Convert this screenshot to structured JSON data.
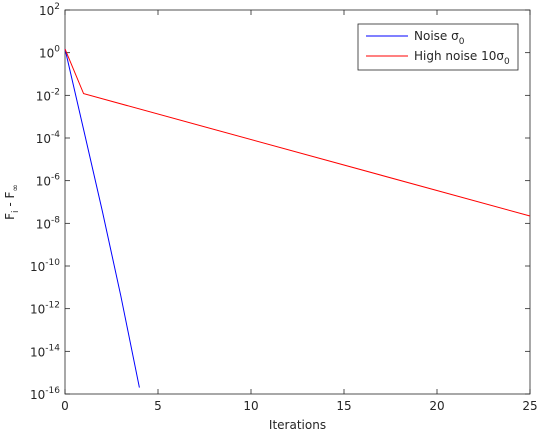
{
  "chart_data": {
    "type": "line",
    "xlabel": "Iterations",
    "ylabel": "F_{i} - F_{∞}",
    "log_y": true,
    "grid": false,
    "legend": "top-right",
    "xlim": [
      0,
      25
    ],
    "xticks": [
      0,
      5,
      10,
      15,
      20,
      25
    ],
    "ylim": [
      1e-16,
      100
    ],
    "yticks": [
      {
        "value": 100,
        "label": "10^{2}"
      },
      {
        "value": 1,
        "label": "10^{0}"
      },
      {
        "value": 0.01,
        "label": "10^{-2}"
      },
      {
        "value": 0.0001,
        "label": "10^{-4}"
      },
      {
        "value": 1e-06,
        "label": "10^{-6}"
      },
      {
        "value": 1e-08,
        "label": "10^{-8}"
      },
      {
        "value": 1e-10,
        "label": "10^{-10}"
      },
      {
        "value": 1e-12,
        "label": "10^{-12}"
      },
      {
        "value": 1e-14,
        "label": "10^{-14}"
      },
      {
        "value": 1e-16,
        "label": "10^{-16}"
      }
    ],
    "series": [
      {
        "name": "Noise σ_{0}",
        "color": "#0000ff",
        "x": [
          0,
          1,
          2,
          3,
          4
        ],
        "values": [
          1.5,
          0.00025,
          4e-08,
          4e-12,
          2e-16
        ]
      },
      {
        "name": "High noise 10σ_{0}",
        "color": "#ff0000",
        "x": [
          0,
          1,
          25
        ],
        "values": [
          1.5,
          0.012,
          2.2e-08
        ]
      }
    ]
  }
}
